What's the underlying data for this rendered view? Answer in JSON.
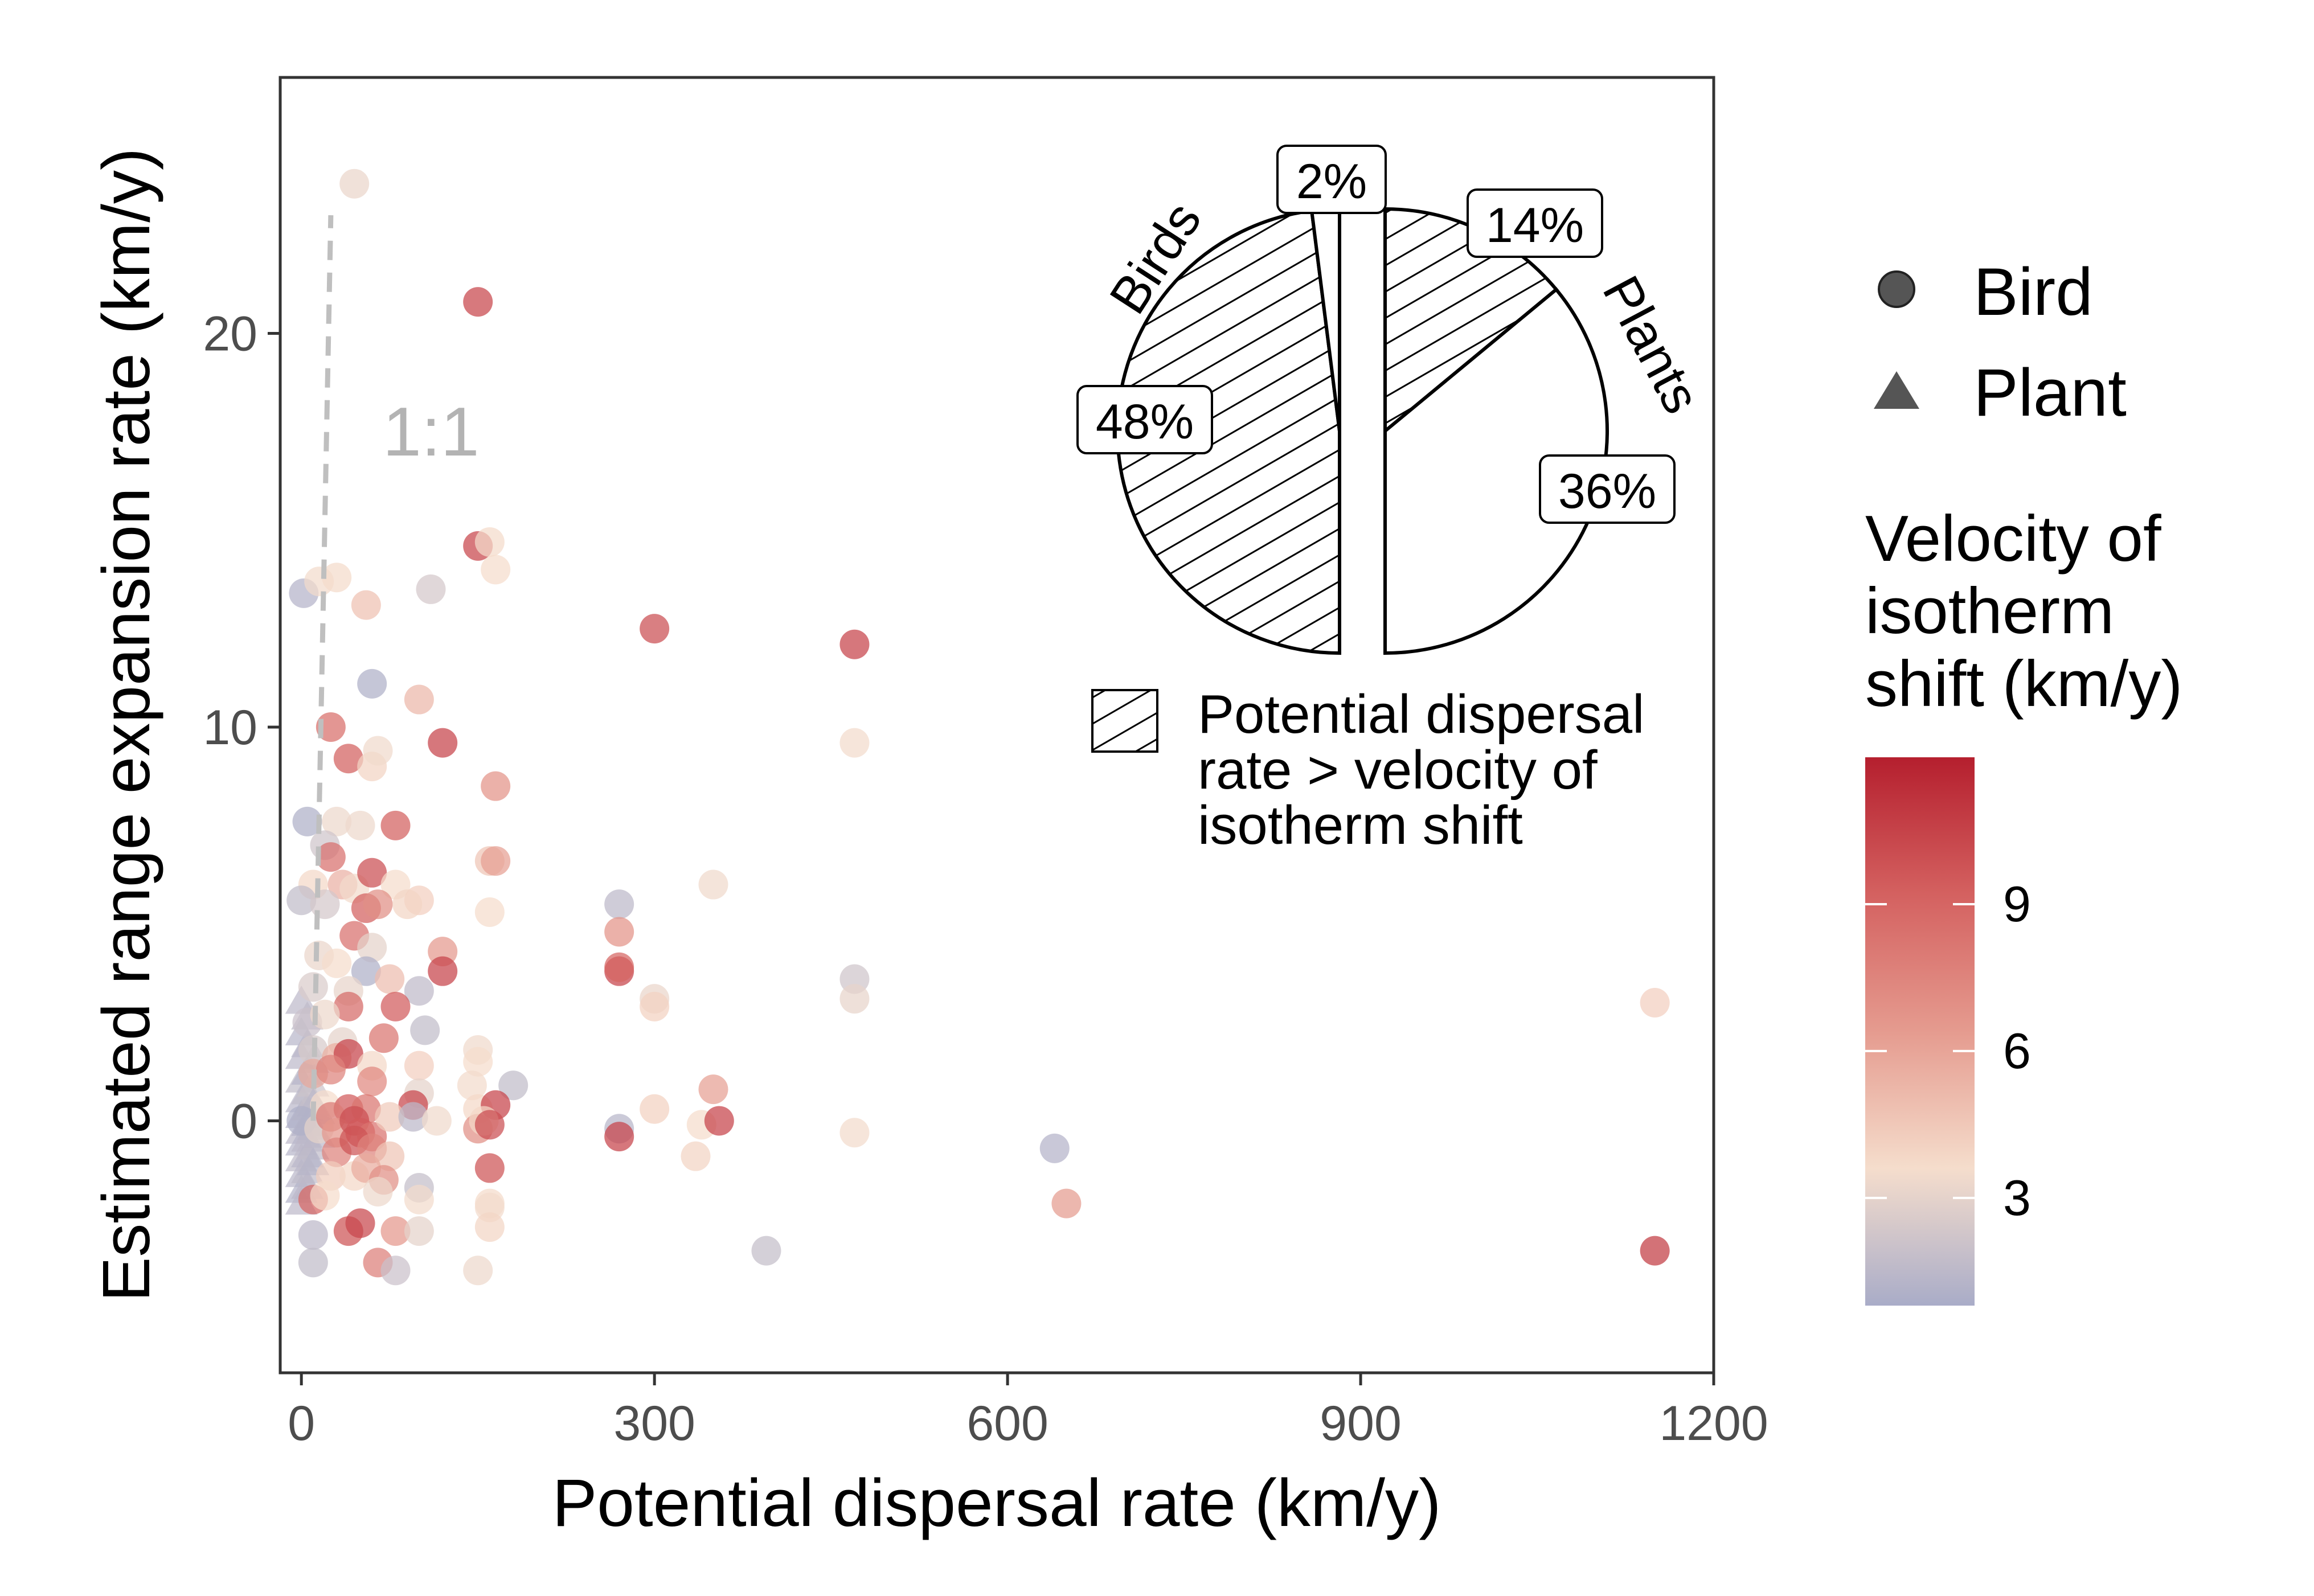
{
  "chart_data": {
    "type": "scatter",
    "xlabel": "Potential dispersal rate (km/y)",
    "ylabel": "Estimated range expansion rate (km/y)",
    "xlim": [
      -18,
      1200
    ],
    "ylim": [
      -6.4,
      26.5
    ],
    "x_ticks": [
      0,
      300,
      600,
      900,
      1200
    ],
    "y_ticks": [
      0,
      10,
      20
    ],
    "grid": false,
    "reference_line": {
      "label": "1:1",
      "points": [
        [
          10,
          0
        ],
        [
          25,
          23
        ]
      ]
    },
    "shape_legend": {
      "placement": "right",
      "entries": [
        {
          "label": "Bird",
          "shape": "circle"
        },
        {
          "label": "Plant",
          "shape": "triangle"
        }
      ]
    },
    "color_legend": {
      "title": [
        "Velocity of",
        "isotherm",
        "shift (km/y)"
      ],
      "ticks": [
        3,
        6,
        9
      ],
      "range": [
        0.8,
        12
      ],
      "stops": [
        "#a9acc8",
        "#f5ddcc",
        "#e59b8f",
        "#d46160",
        "#b51f2e"
      ]
    },
    "birds": [
      [
        2,
        13.4,
        1.2
      ],
      [
        5,
        7.6,
        1.0
      ],
      [
        15,
        13.7,
        3.5
      ],
      [
        30,
        13.8,
        3.7
      ],
      [
        45,
        23.8,
        3.2
      ],
      [
        55,
        13.1,
        4.8
      ],
      [
        60,
        11.1,
        1.0
      ],
      [
        100,
        10.7,
        5.2
      ],
      [
        110,
        13.5,
        2.4
      ],
      [
        150,
        20.8,
        10.4
      ],
      [
        150,
        14.6,
        10.4
      ],
      [
        160,
        14.7,
        3.7
      ],
      [
        165,
        14.0,
        3.6
      ],
      [
        25,
        10.0,
        8.6
      ],
      [
        40,
        9.2,
        9.3
      ],
      [
        60,
        9.0,
        4.0
      ],
      [
        65,
        9.4,
        3.4
      ],
      [
        120,
        9.6,
        10.5
      ],
      [
        165,
        8.5,
        6.8
      ],
      [
        30,
        7.6,
        3.3
      ],
      [
        50,
        7.5,
        3.3
      ],
      [
        80,
        7.5,
        9.3
      ],
      [
        20,
        7.0,
        2.2
      ],
      [
        25,
        6.7,
        8.5
      ],
      [
        10,
        6.0,
        3.8
      ],
      [
        35,
        6.0,
        5.5
      ],
      [
        45,
        5.9,
        3.5
      ],
      [
        60,
        6.3,
        10.0
      ],
      [
        80,
        6.0,
        3.6
      ],
      [
        100,
        5.6,
        4.2
      ],
      [
        160,
        6.6,
        4.6
      ],
      [
        165,
        6.6,
        6.2
      ],
      [
        0,
        5.6,
        1.7
      ],
      [
        20,
        5.5,
        2.4
      ],
      [
        55,
        5.4,
        9.3
      ],
      [
        65,
        5.5,
        7.0
      ],
      [
        90,
        5.5,
        3.9
      ],
      [
        160,
        5.3,
        3.6
      ],
      [
        45,
        4.7,
        8.5
      ],
      [
        15,
        4.2,
        3.2
      ],
      [
        60,
        4.4,
        3.0
      ],
      [
        120,
        4.3,
        6.5
      ],
      [
        270,
        5.5,
        1.5
      ],
      [
        270,
        4.8,
        6.8
      ],
      [
        350,
        6.0,
        3.4
      ],
      [
        470,
        9.6,
        3.5
      ],
      [
        470,
        3.6,
        2.2
      ],
      [
        470,
        3.1,
        3.1
      ],
      [
        300,
        12.5,
        10.0
      ],
      [
        470,
        12.1,
        10.5
      ],
      [
        270,
        3.8,
        10.5
      ],
      [
        270,
        3.9,
        9.0
      ],
      [
        300,
        3.1,
        3.2
      ],
      [
        300,
        2.9,
        4.1
      ],
      [
        1150,
        3.0,
        4.2
      ],
      [
        30,
        4.0,
        3.6
      ],
      [
        55,
        3.8,
        1.0
      ],
      [
        75,
        3.6,
        5.0
      ],
      [
        100,
        3.3,
        1.6
      ],
      [
        120,
        3.8,
        10.5
      ],
      [
        10,
        3.4,
        2.6
      ],
      [
        40,
        3.3,
        3.1
      ],
      [
        40,
        2.9,
        8.8
      ],
      [
        80,
        2.9,
        9.5
      ],
      [
        105,
        2.3,
        1.7
      ],
      [
        5,
        2.5,
        2.0
      ],
      [
        20,
        2.7,
        3.3
      ],
      [
        35,
        2.0,
        3.0
      ],
      [
        70,
        2.1,
        8.3
      ],
      [
        150,
        1.8,
        3.4
      ],
      [
        10,
        1.8,
        2.5
      ],
      [
        30,
        1.6,
        5.6
      ],
      [
        40,
        1.7,
        10.5
      ],
      [
        60,
        1.4,
        3.8
      ],
      [
        100,
        1.4,
        4.2
      ],
      [
        150,
        1.5,
        3.6
      ],
      [
        180,
        0.9,
        1.7
      ],
      [
        10,
        1.2,
        5.8
      ],
      [
        25,
        1.3,
        7.6
      ],
      [
        60,
        1.0,
        7.3
      ],
      [
        100,
        0.7,
        3.0
      ],
      [
        145,
        0.9,
        3.5
      ],
      [
        20,
        0.4,
        3.6
      ],
      [
        40,
        0.3,
        9.5
      ],
      [
        55,
        0.3,
        8.3
      ],
      [
        95,
        0.4,
        10.4
      ],
      [
        150,
        0.3,
        3.8
      ],
      [
        165,
        0.4,
        10.5
      ],
      [
        350,
        0.8,
        6.2
      ],
      [
        300,
        0.3,
        4.1
      ],
      [
        0,
        0.0,
        1.0
      ],
      [
        15,
        -0.2,
        3.0
      ],
      [
        25,
        0.1,
        8.0
      ],
      [
        30,
        -0.3,
        6.6
      ],
      [
        45,
        0.0,
        10.0
      ],
      [
        50,
        -0.3,
        9.5
      ],
      [
        60,
        -0.4,
        8.4
      ],
      [
        75,
        0.1,
        4.4
      ],
      [
        95,
        0.1,
        1.5
      ],
      [
        115,
        0.0,
        3.4
      ],
      [
        150,
        -0.2,
        7.0
      ],
      [
        155,
        0.0,
        3.8
      ],
      [
        160,
        -0.1,
        10.0
      ],
      [
        270,
        -0.2,
        1.3
      ],
      [
        270,
        -0.4,
        10.5
      ],
      [
        340,
        -0.1,
        3.6
      ],
      [
        355,
        0.0,
        10.5
      ],
      [
        470,
        -0.3,
        3.5
      ],
      [
        30,
        -0.8,
        7.6
      ],
      [
        45,
        -0.5,
        9.8
      ],
      [
        60,
        -0.7,
        7.5
      ],
      [
        75,
        -0.9,
        4.6
      ],
      [
        335,
        -0.9,
        4.0
      ],
      [
        640,
        -0.7,
        1.2
      ],
      [
        25,
        -1.4,
        4.3
      ],
      [
        45,
        -1.4,
        3.8
      ],
      [
        55,
        -1.2,
        5.7
      ],
      [
        70,
        -1.5,
        7.0
      ],
      [
        100,
        -1.7,
        1.8
      ],
      [
        160,
        -1.2,
        9.8
      ],
      [
        10,
        -2.0,
        9.0
      ],
      [
        20,
        -1.9,
        3.6
      ],
      [
        65,
        -1.8,
        3.3
      ],
      [
        100,
        -2.0,
        3.5
      ],
      [
        160,
        -2.1,
        3.7
      ],
      [
        160,
        -2.2,
        3.5
      ],
      [
        650,
        -2.1,
        6.4
      ],
      [
        10,
        -2.9,
        1.5
      ],
      [
        40,
        -2.8,
        9.8
      ],
      [
        50,
        -2.6,
        10.3
      ],
      [
        80,
        -2.8,
        6.6
      ],
      [
        100,
        -2.8,
        3.0
      ],
      [
        160,
        -2.7,
        3.9
      ],
      [
        395,
        -3.3,
        1.8
      ],
      [
        1150,
        -3.3,
        10.8
      ],
      [
        10,
        -3.6,
        1.7
      ],
      [
        65,
        -3.6,
        7.8
      ],
      [
        80,
        -3.8,
        2.0
      ],
      [
        150,
        -3.8,
        3.3
      ]
    ],
    "plants": [
      [
        0,
        3.0,
        1.5
      ],
      [
        0,
        2.2,
        1.3
      ],
      [
        0,
        1.6,
        1.5
      ],
      [
        0,
        1.0,
        1.7
      ],
      [
        0,
        0.5,
        1.4
      ],
      [
        0,
        0.1,
        1.2
      ],
      [
        0,
        -0.3,
        1.5
      ],
      [
        0,
        -0.6,
        1.3
      ],
      [
        0,
        -1.0,
        1.6
      ],
      [
        0,
        -1.4,
        1.4
      ],
      [
        0,
        -1.8,
        1.2
      ],
      [
        0,
        -2.1,
        1.5
      ],
      [
        5,
        2.6,
        1.6
      ],
      [
        5,
        1.9,
        1.4
      ],
      [
        5,
        1.2,
        1.3
      ],
      [
        5,
        0.7,
        1.7
      ],
      [
        5,
        0.3,
        1.8
      ],
      [
        5,
        -0.1,
        1.3
      ],
      [
        5,
        -0.5,
        1.5
      ],
      [
        5,
        -0.9,
        1.4
      ],
      [
        5,
        -1.3,
        1.6
      ],
      [
        5,
        -1.7,
        1.5
      ],
      [
        10,
        1.5,
        1.6
      ],
      [
        10,
        0.9,
        2.1
      ],
      [
        10,
        0.4,
        1.5
      ],
      [
        10,
        -0.2,
        1.4
      ],
      [
        10,
        -0.7,
        1.6
      ],
      [
        10,
        -1.1,
        1.3
      ],
      [
        15,
        0.2,
        1.8
      ],
      [
        15,
        -0.4,
        1.5
      ]
    ],
    "inset_pie": {
      "groups": [
        {
          "label": "Birds",
          "slices": [
            {
              "label": "2%",
              "value": 2,
              "hatched": false
            },
            {
              "label": "48%",
              "value": 48,
              "hatched": true
            }
          ]
        },
        {
          "label": "Plants",
          "slices": [
            {
              "label": "14%",
              "value": 14,
              "hatched": true
            },
            {
              "label": "36%",
              "value": 36,
              "hatched": false
            }
          ]
        }
      ],
      "legend": [
        "Potential dispersal",
        "rate > velocity of",
        "isotherm shift"
      ]
    }
  }
}
